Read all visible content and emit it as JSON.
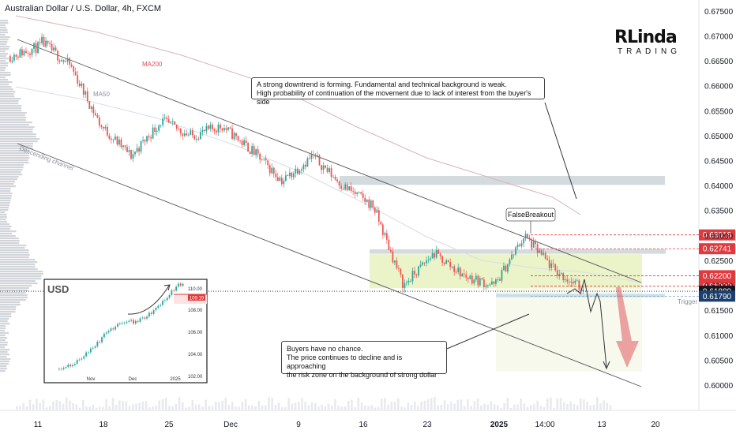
{
  "header": {
    "title": "Australian Dollar / U.S. Dollar, 4h, FXCM"
  },
  "chart_data": {
    "type": "candlestick",
    "symbol": "Australian Dollar / U.S. Dollar",
    "timeframe": "4h",
    "source": "FXCM",
    "ylim": [
      0.5985,
      0.676
    ],
    "y_ticks": [
      "0.67500",
      "0.67000",
      "0.66500",
      "0.66000",
      "0.65500",
      "0.65000",
      "0.64500",
      "0.64000",
      "0.63500",
      "0.63000",
      "0.62500",
      "0.62000",
      "0.61500",
      "0.61000",
      "0.60500",
      "0.60000"
    ],
    "x_ticks": [
      "11",
      "18",
      "25",
      "Dec",
      "9",
      "16",
      "23",
      "2025",
      "14:00",
      "13",
      "20"
    ],
    "price_levels": [
      {
        "value": 0.63018,
        "label": "0.63018",
        "color": "#e03a3e"
      },
      {
        "value": 0.62741,
        "label": "0.62741",
        "color": "#e03a3e"
      },
      {
        "value": 0.622,
        "label": "0.62200",
        "color": "#e03a3e"
      },
      {
        "value": 0.6199,
        "label": "0.61990",
        "color": "#e03a3e"
      },
      {
        "value": 0.61889,
        "label": "0.61889",
        "color": "#131722"
      },
      {
        "value": 0.6179,
        "label": "0.61790",
        "color": "#1c3f6e"
      }
    ],
    "key_points": [
      [
        0.666,
        0.668
      ],
      [
        0.669,
        0.664
      ],
      [
        0.664,
        0.652
      ],
      [
        0.652,
        0.646
      ],
      [
        0.646,
        0.653
      ],
      [
        0.653,
        0.65
      ],
      [
        0.65,
        0.652
      ],
      [
        0.652,
        0.647
      ],
      [
        0.647,
        0.641
      ],
      [
        0.641,
        0.646
      ],
      [
        0.646,
        0.64
      ],
      [
        0.64,
        0.636
      ],
      [
        0.636,
        0.62
      ],
      [
        0.62,
        0.6265
      ],
      [
        0.6265,
        0.622
      ],
      [
        0.622,
        0.62
      ],
      [
        0.62,
        0.63
      ],
      [
        0.63,
        0.623
      ],
      [
        0.623,
        0.619
      ]
    ],
    "annotations": {
      "ma200": "MA200",
      "ma50": "MA50",
      "channel": "Descending channel",
      "false_breakout": "FalseBreakout",
      "trigger": "Trigger"
    },
    "inset": {
      "title": "USD",
      "y_ticks": [
        "110.00",
        "108.00",
        "106.00",
        "104.00",
        "102.00"
      ],
      "x_ticks": [
        "Nov",
        "Dec",
        "2025"
      ],
      "last_label": "109.19"
    }
  },
  "callouts": {
    "top": [
      "A strong downtrend is forming. Fundamental and technical background is weak.",
      "High probability of continuation of the movement due to lack of interest from the buyer's side"
    ],
    "bottom": [
      "Buyers have no chance.",
      "The price continues to decline and is approaching",
      "the risk zone on the background of strong dollar"
    ]
  },
  "logo": {
    "text_top": "RLinda",
    "text_bottom": "TRADING"
  },
  "colors": {
    "bull": "#26a69a",
    "bear": "#ef5350",
    "channel": "#555555",
    "zone": "#e9f2c2",
    "resistance": "#b0bec5"
  }
}
